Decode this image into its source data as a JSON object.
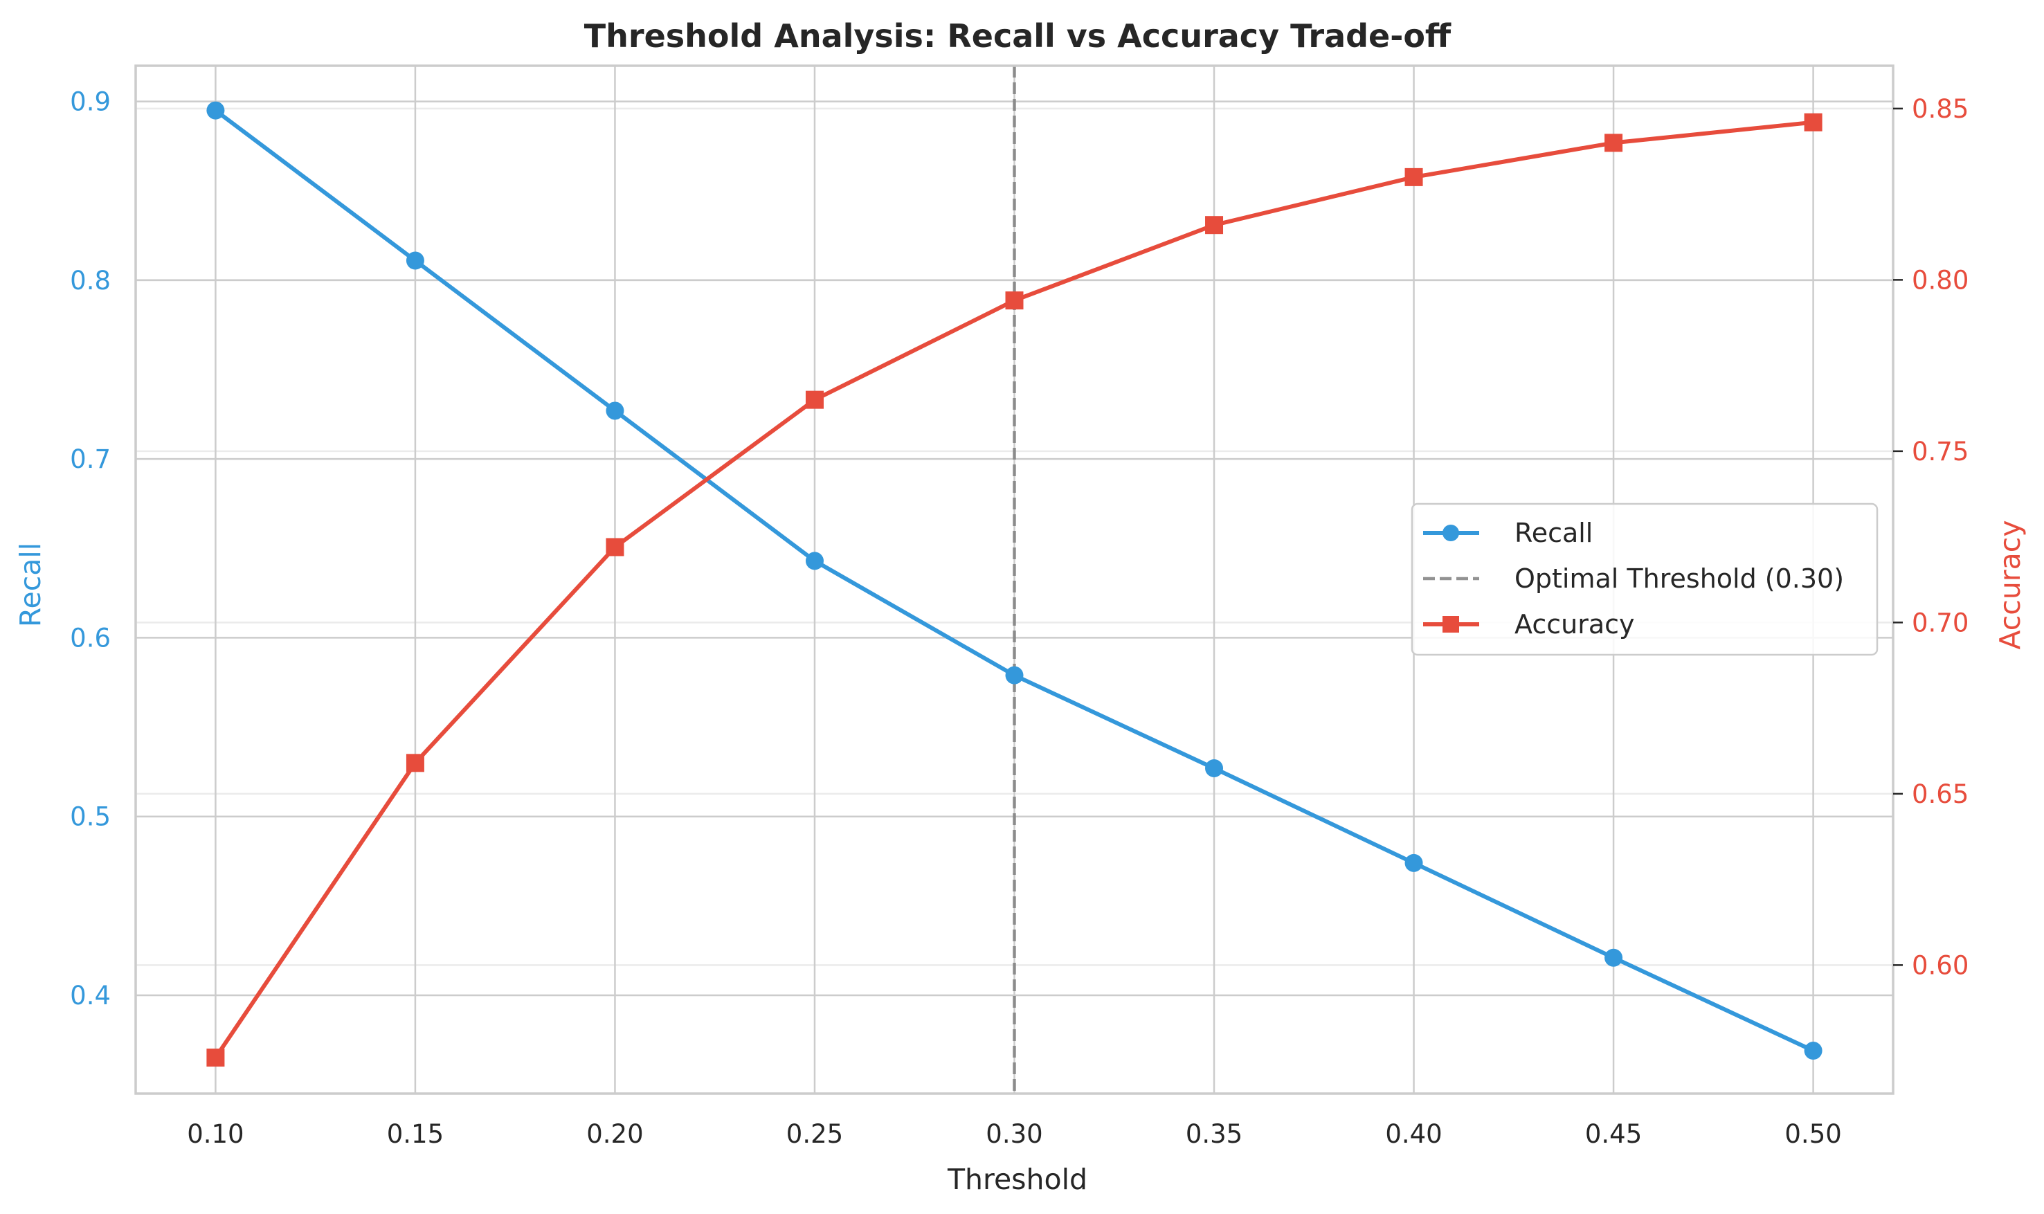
{
  "chart_data": {
    "type": "line",
    "title": "Threshold Analysis: Recall vs Accuracy Trade-off",
    "xlabel": "Threshold",
    "ylabel_left": "Recall",
    "ylabel_right": "Accuracy",
    "x": [
      0.1,
      0.15,
      0.2,
      0.25,
      0.3,
      0.35,
      0.4,
      0.45,
      0.5
    ],
    "x_ticks": [
      "0.10",
      "0.15",
      "0.20",
      "0.25",
      "0.30",
      "0.35",
      "0.40",
      "0.45",
      "0.50"
    ],
    "xlim": [
      0.08,
      0.52
    ],
    "y_left": {
      "lim": [
        0.345,
        0.92
      ],
      "ticks": [
        "0.4",
        "0.5",
        "0.6",
        "0.7",
        "0.8",
        "0.9"
      ],
      "color": "#3498db"
    },
    "y_right": {
      "lim": [
        0.5625,
        0.8625
      ],
      "ticks": [
        "0.60",
        "0.65",
        "0.70",
        "0.75",
        "0.80",
        "0.85"
      ],
      "color": "#e74c3c"
    },
    "series": [
      {
        "name": "Recall",
        "axis": "left",
        "marker": "circle",
        "color": "#3498db",
        "values": [
          0.895,
          0.811,
          0.727,
          0.643,
          0.579,
          0.527,
          0.474,
          0.421,
          0.369
        ]
      },
      {
        "name": "Accuracy",
        "axis": "right",
        "marker": "square",
        "color": "#e74c3c",
        "values": [
          0.573,
          0.659,
          0.722,
          0.765,
          0.794,
          0.816,
          0.83,
          0.84,
          0.846
        ]
      }
    ],
    "reference_line": {
      "name": "Optimal Threshold (0.30)",
      "x": 0.3,
      "style": "dashed",
      "color": "#808080"
    },
    "legend": {
      "placement": "center-right",
      "entries": [
        "Recall",
        "Optimal Threshold (0.30)",
        "Accuracy"
      ]
    },
    "grid": true
  }
}
